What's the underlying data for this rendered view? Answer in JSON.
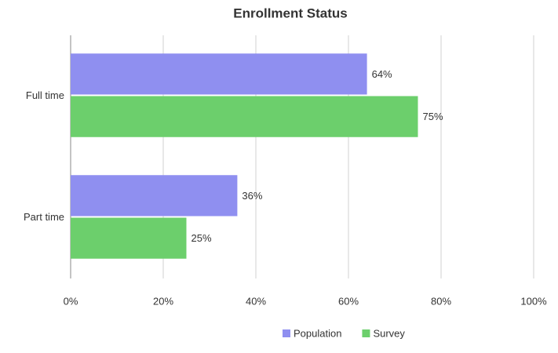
{
  "chart_data": {
    "type": "hbar",
    "title": "Enrollment Status",
    "categories": [
      "Full time",
      "Part time"
    ],
    "series": [
      {
        "name": "Population",
        "color": "#8f8ff0",
        "values": [
          64,
          36
        ],
        "value_labels": [
          "64%",
          "36%"
        ]
      },
      {
        "name": "Survey",
        "color": "#6ccf6c",
        "values": [
          75,
          25
        ],
        "value_labels": [
          "75%",
          "25%"
        ]
      }
    ],
    "xlim": [
      0,
      100
    ],
    "xticks": [
      {
        "value": 0,
        "label": "0%"
      },
      {
        "value": 20,
        "label": "20%"
      },
      {
        "value": 40,
        "label": "40%"
      },
      {
        "value": 60,
        "label": "60%"
      },
      {
        "value": 80,
        "label": "80%"
      },
      {
        "value": 100,
        "label": "100%"
      }
    ],
    "grid": true,
    "legend": "bottom"
  }
}
